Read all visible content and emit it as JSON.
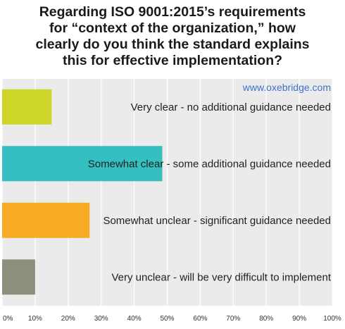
{
  "chart_data": {
    "type": "bar",
    "orientation": "horizontal",
    "title": "Regarding ISO 9001:2015’s requirements\nfor “context of the organization,” how\nclearly do you think the standard explains\nthis for effective implementation?",
    "watermark": "www.oxebridge.com",
    "categories": [
      "Very clear - no additional guidance needed",
      "Somewhat clear - some additional guidance needed",
      "Somewhat unclear - significant guidance needed",
      "Very unclear - will be very difficult to implement"
    ],
    "values": [
      15,
      48.5,
      26.5,
      10
    ],
    "colors": [
      "#cfd62a",
      "#35bfc0",
      "#f7aa24",
      "#8e8e7e"
    ],
    "xlim": [
      0,
      100
    ],
    "x_ticks": [
      "0%",
      "10%",
      "20%",
      "30%",
      "40%",
      "50%",
      "60%",
      "70%",
      "80%",
      "90%",
      "100%"
    ],
    "grid": true,
    "legend": "none"
  }
}
